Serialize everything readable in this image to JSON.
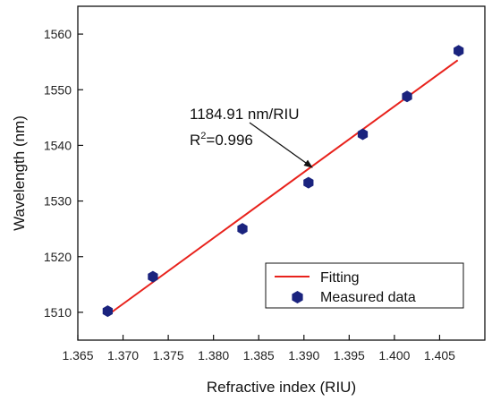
{
  "chart_data": {
    "type": "scatter",
    "title": "",
    "xlabel": "Refractive index (RIU)",
    "ylabel": "Wavelength (nm)",
    "xlim": [
      1.365,
      1.41
    ],
    "ylim": [
      1505,
      1565
    ],
    "xticks": [
      "1.365",
      "1.370",
      "1.375",
      "1.380",
      "1.385",
      "1.390",
      "1.395",
      "1.400",
      "1.405"
    ],
    "yticks": [
      "1510",
      "1520",
      "1530",
      "1540",
      "1550",
      "1560"
    ],
    "grid": false,
    "legend_position": "bottom-right",
    "series": [
      {
        "name": "Fitting",
        "kind": "line",
        "color": "#e8221c",
        "x": [
          1.3683,
          1.407
        ],
        "y": [
          1509.5,
          1555.3
        ]
      },
      {
        "name": "Measured data",
        "kind": "scatter",
        "marker": "hexagon",
        "color": "#1a237e",
        "x": [
          1.3683,
          1.3733,
          1.3832,
          1.3905,
          1.3965,
          1.4014,
          1.4071
        ],
        "y": [
          1510.2,
          1516.4,
          1525.0,
          1533.3,
          1542.0,
          1548.8,
          1557.0
        ]
      }
    ],
    "annotations": {
      "slope": "1184.91 nm/RIU",
      "r2_prefix": "R",
      "r2_sup": "2",
      "r2_value": "=0.996"
    }
  }
}
